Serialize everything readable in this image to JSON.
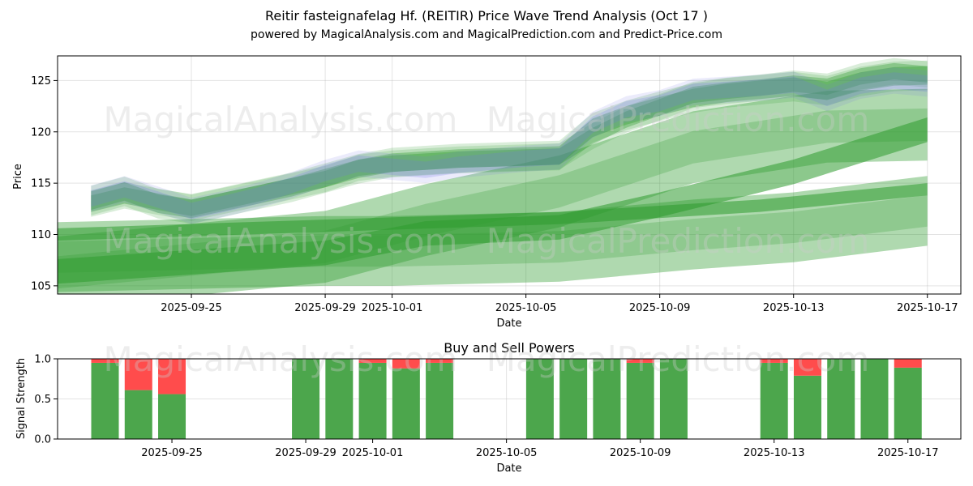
{
  "title": "Reitir fasteignafelag Hf. (REITIR) Price Wave Trend Analysis (Oct 17 )",
  "subtitle": "powered by MagicalAnalysis.com and MagicalPrediction.com and Predict-Price.com",
  "watermarks": [
    "MagicalAnalysis.com",
    "MagicalPrediction.com"
  ],
  "colors": {
    "green": "#2e9a2e",
    "blue": "#6f74e6",
    "buy": "#4ca64c",
    "sell": "#ff4c4c"
  },
  "chart_data": [
    {
      "type": "area",
      "title": "",
      "xlabel": "Date",
      "ylabel": "Price",
      "x_range": [
        "2025-09-21",
        "2025-10-18"
      ],
      "ylim": [
        104.2,
        127.4
      ],
      "yticks": [
        105,
        110,
        115,
        120,
        125
      ],
      "xticks": [
        "2025-09-25",
        "2025-09-29",
        "2025-10-01",
        "2025-10-05",
        "2025-10-09",
        "2025-10-13",
        "2025-10-17"
      ],
      "grid": true,
      "dates": [
        "2025-09-22",
        "2025-09-23",
        "2025-09-24",
        "2025-09-25",
        "2025-09-26",
        "2025-09-27",
        "2025-09-28",
        "2025-09-29",
        "2025-09-30",
        "2025-10-01",
        "2025-10-02",
        "2025-10-03",
        "2025-10-04",
        "2025-10-05",
        "2025-10-06",
        "2025-10-07",
        "2025-10-08",
        "2025-10-09",
        "2025-10-10",
        "2025-10-11",
        "2025-10-12",
        "2025-10-13",
        "2025-10-14",
        "2025-10-15",
        "2025-10-16",
        "2025-10-17"
      ],
      "price_waves": [
        {
          "name": "wave-1",
          "color": "green",
          "center": [
            113.3,
            114.2,
            113.0,
            112.5,
            113.2,
            113.9,
            114.6,
            115.5,
            116.4,
            117.0,
            117.2,
            117.4,
            117.5,
            117.6,
            117.7,
            120.4,
            121.6,
            122.5,
            123.3,
            123.8,
            124.1,
            124.4,
            124.0,
            124.9,
            125.4,
            125.5
          ],
          "half_width": 0.9
        },
        {
          "name": "wave-2",
          "color": "green",
          "center": [
            113.0,
            113.8,
            113.2,
            112.6,
            113.3,
            114.0,
            114.7,
            115.4,
            116.5,
            116.9,
            117.1,
            117.3,
            117.4,
            117.5,
            117.6,
            119.6,
            121.2,
            122.4,
            123.6,
            124.0,
            124.3,
            124.7,
            124.4,
            125.4,
            125.9,
            125.6
          ],
          "half_width": 0.8
        },
        {
          "name": "wave-3",
          "color": "blue",
          "center": [
            113.5,
            114.4,
            113.4,
            112.3,
            113.0,
            113.8,
            114.8,
            116.0,
            116.9,
            116.6,
            116.3,
            116.8,
            117.1,
            117.4,
            117.6,
            120.7,
            122.2,
            122.8,
            123.9,
            124.1,
            124.3,
            124.6,
            123.3,
            124.5,
            125.0,
            124.7
          ],
          "half_width": 0.8
        }
      ],
      "trend_bands": [
        {
          "name": "trend-band-upper",
          "color": "green",
          "x": [
            "2025-09-21",
            "2025-09-29",
            "2025-10-02",
            "2025-10-06",
            "2025-10-10",
            "2025-10-14",
            "2025-10-17"
          ],
          "center": [
            106.3,
            108.8,
            111.4,
            114.2,
            118.5,
            120.5,
            120.7
          ],
          "half_width": 3.5
        },
        {
          "name": "trend-band-main",
          "color": "green",
          "x": [
            "2025-09-21",
            "2025-09-29",
            "2025-10-02",
            "2025-10-06",
            "2025-10-09",
            "2025-10-13",
            "2025-10-17"
          ],
          "center": [
            106.4,
            108.2,
            110.1,
            110.7,
            112.9,
            116.1,
            120.2
          ],
          "half_width": 1.2
        },
        {
          "name": "trend-band-lower",
          "color": "green",
          "x": [
            "2025-09-21",
            "2025-09-29",
            "2025-10-01",
            "2025-10-06",
            "2025-10-10",
            "2025-10-13",
            "2025-10-17"
          ],
          "center": [
            107.8,
            108.4,
            108.4,
            108.8,
            110.0,
            110.7,
            112.3
          ],
          "half_width": 3.4
        },
        {
          "name": "trend-band-flat",
          "color": "green",
          "x": [
            "2025-09-21",
            "2025-10-06",
            "2025-10-12",
            "2025-10-17"
          ],
          "center": [
            110.0,
            111.6,
            112.8,
            114.4
          ],
          "half_width": 0.6
        }
      ]
    },
    {
      "type": "bar",
      "title": "Buy and Sell Powers",
      "xlabel": "Date",
      "ylabel": "Signal Strength",
      "ylim": [
        0,
        1.0
      ],
      "yticks": [
        "0.0",
        "0.5",
        "1.0"
      ],
      "xticks": [
        "2025-09-25",
        "2025-09-29",
        "2025-10-01",
        "2025-10-05",
        "2025-10-09",
        "2025-10-13",
        "2025-10-17"
      ],
      "categories": [
        "2025-09-23",
        "2025-09-24",
        "2025-09-25",
        "2025-09-29",
        "2025-09-30",
        "2025-10-01",
        "2025-10-02",
        "2025-10-03",
        "2025-10-06",
        "2025-10-07",
        "2025-10-08",
        "2025-10-09",
        "2025-10-10",
        "2025-10-13",
        "2025-10-14",
        "2025-10-15",
        "2025-10-16",
        "2025-10-17"
      ],
      "series": [
        {
          "name": "Buy",
          "color": "buy",
          "values": [
            0.95,
            0.61,
            0.56,
            1.0,
            1.0,
            0.95,
            0.88,
            0.95,
            1.0,
            1.0,
            1.0,
            0.95,
            1.0,
            0.95,
            0.79,
            1.0,
            1.0,
            0.89
          ]
        },
        {
          "name": "Sell",
          "color": "sell",
          "values": [
            0.05,
            0.39,
            0.44,
            0.0,
            0.0,
            0.05,
            0.12,
            0.05,
            0.0,
            0.0,
            0.0,
            0.05,
            0.0,
            0.05,
            0.21,
            0.0,
            0.0,
            0.11
          ]
        }
      ]
    }
  ]
}
